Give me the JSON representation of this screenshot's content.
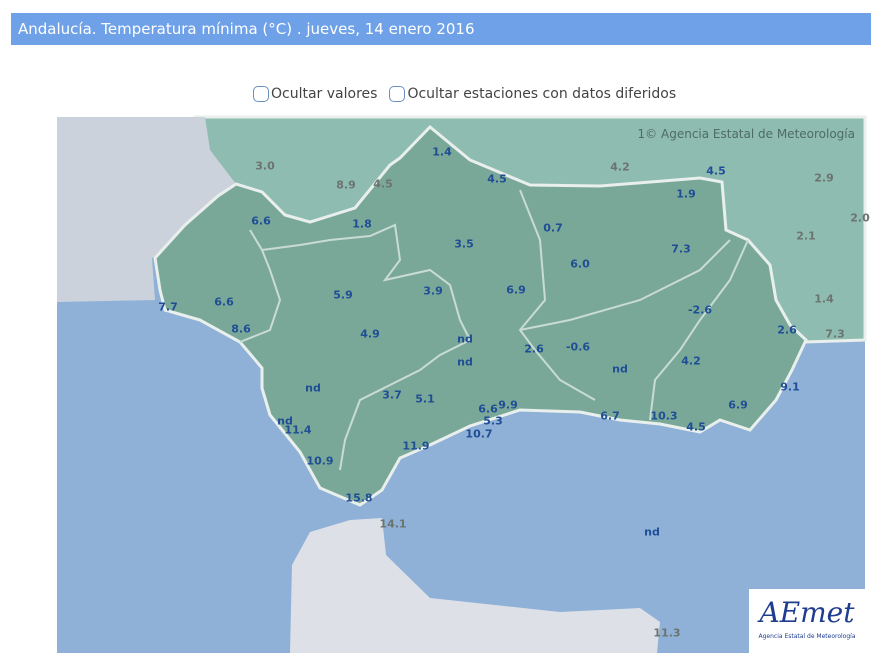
{
  "header": {
    "title": "Andalucía. Temperatura mínima (°C) . jueves, 14 enero 2016"
  },
  "options": [
    {
      "label": "Ocultar valores",
      "checked": false
    },
    {
      "label": "Ocultar estaciones con datos diferidos",
      "checked": false
    }
  ],
  "map": {
    "attribution": "Agencia Estatal de Meteorología",
    "attribution_prefix": "1©",
    "logo_text": "AEmet",
    "logo_subtitle": "Agencia Estatal de Meteorología",
    "colors": {
      "andalucia": "#7aa898",
      "other_regions": "#8fbcb0",
      "sea": "#8fb1d8",
      "portugal": "#ccd2db",
      "africa": "#dde1e7",
      "value_andalucia": "#1f4e96",
      "value_outside": "#6c7470"
    },
    "stations_outside": [
      "3.0",
      "8.9",
      "4.5",
      "4.2",
      "2.9",
      "2.0",
      "2.1",
      "1.4",
      "7.3",
      "14.1",
      "11.3"
    ],
    "stations_andalucia": [
      "1.4",
      "4.5",
      "4.5",
      "1.9",
      "6.6",
      "1.8",
      "3.5",
      "0.7",
      "7.3",
      "6.0",
      "7.7",
      "6.6",
      "5.9",
      "3.9",
      "6.9",
      "-2.6",
      "8.6",
      "4.9",
      "nd",
      "2.6",
      "-0.6",
      "2.6",
      "nd",
      "4.2",
      "nd",
      "nd",
      "3.7",
      "5.1",
      "9.1",
      "6.6",
      "9.9",
      "6.7",
      "10.3",
      "6.9",
      "5.3",
      "nd",
      "11.4",
      "10.7",
      "4.5",
      "11.9",
      "10.9",
      "15.8",
      "nd"
    ]
  }
}
